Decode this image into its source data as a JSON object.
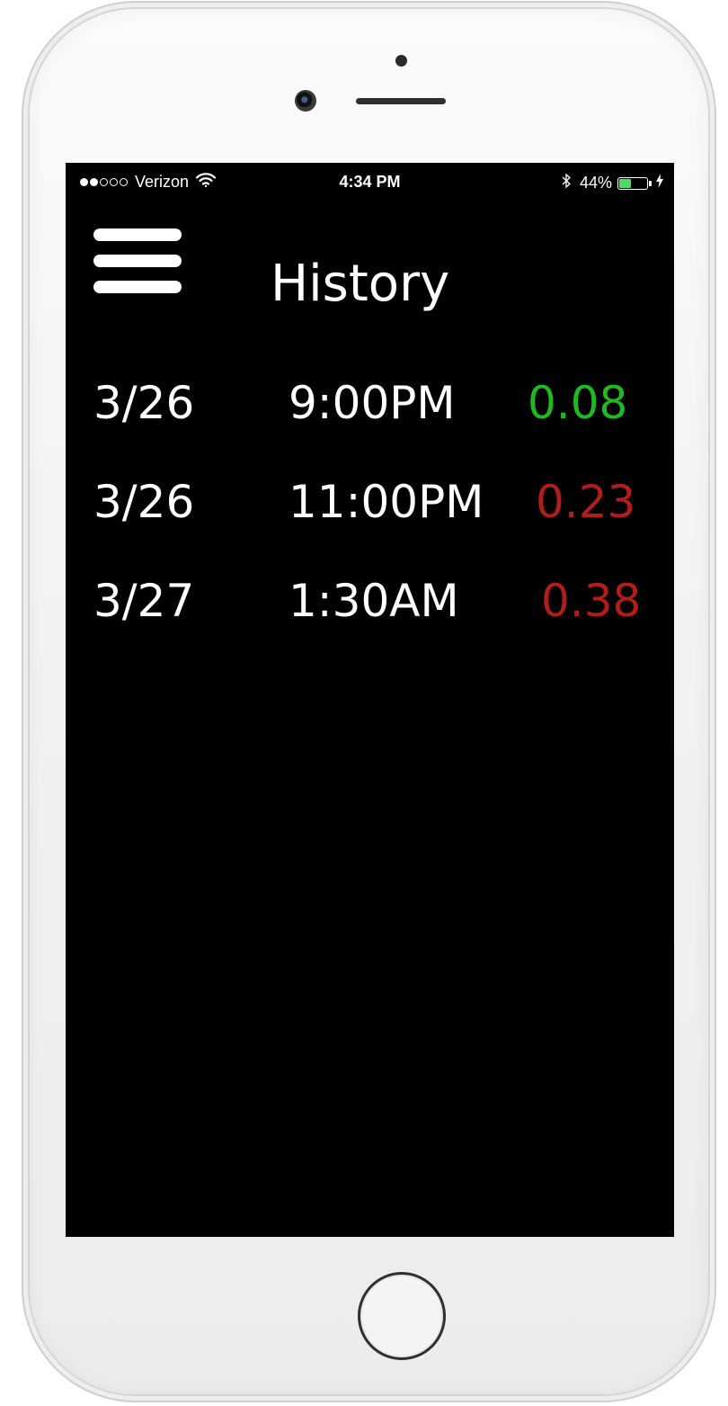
{
  "status_bar": {
    "carrier": "Verizon",
    "signal_bars_filled": 2,
    "signal_bars_total": 5,
    "time": "4:34 PM",
    "battery_percent": "44%",
    "battery_level": 0.44,
    "battery_color": "#4cd964",
    "icons": [
      "signal-dots-icon",
      "wifi-icon",
      "bluetooth-icon",
      "battery-icon",
      "charging-bolt-icon"
    ]
  },
  "header": {
    "menu_icon": "hamburger-menu-icon",
    "title": "History"
  },
  "history": [
    {
      "date": "3/26",
      "time": "9:00PM",
      "value": "0.08",
      "status": "low",
      "color": "#22b822"
    },
    {
      "date": "3/26",
      "time": "11:00PM",
      "value": "0.23",
      "status": "high",
      "color": "#b01d1d"
    },
    {
      "date": "3/27",
      "time": "1:30AM",
      "value": "0.38",
      "status": "high",
      "color": "#b01d1d"
    }
  ],
  "device": {
    "home_button_icon": "home-button-icon"
  }
}
